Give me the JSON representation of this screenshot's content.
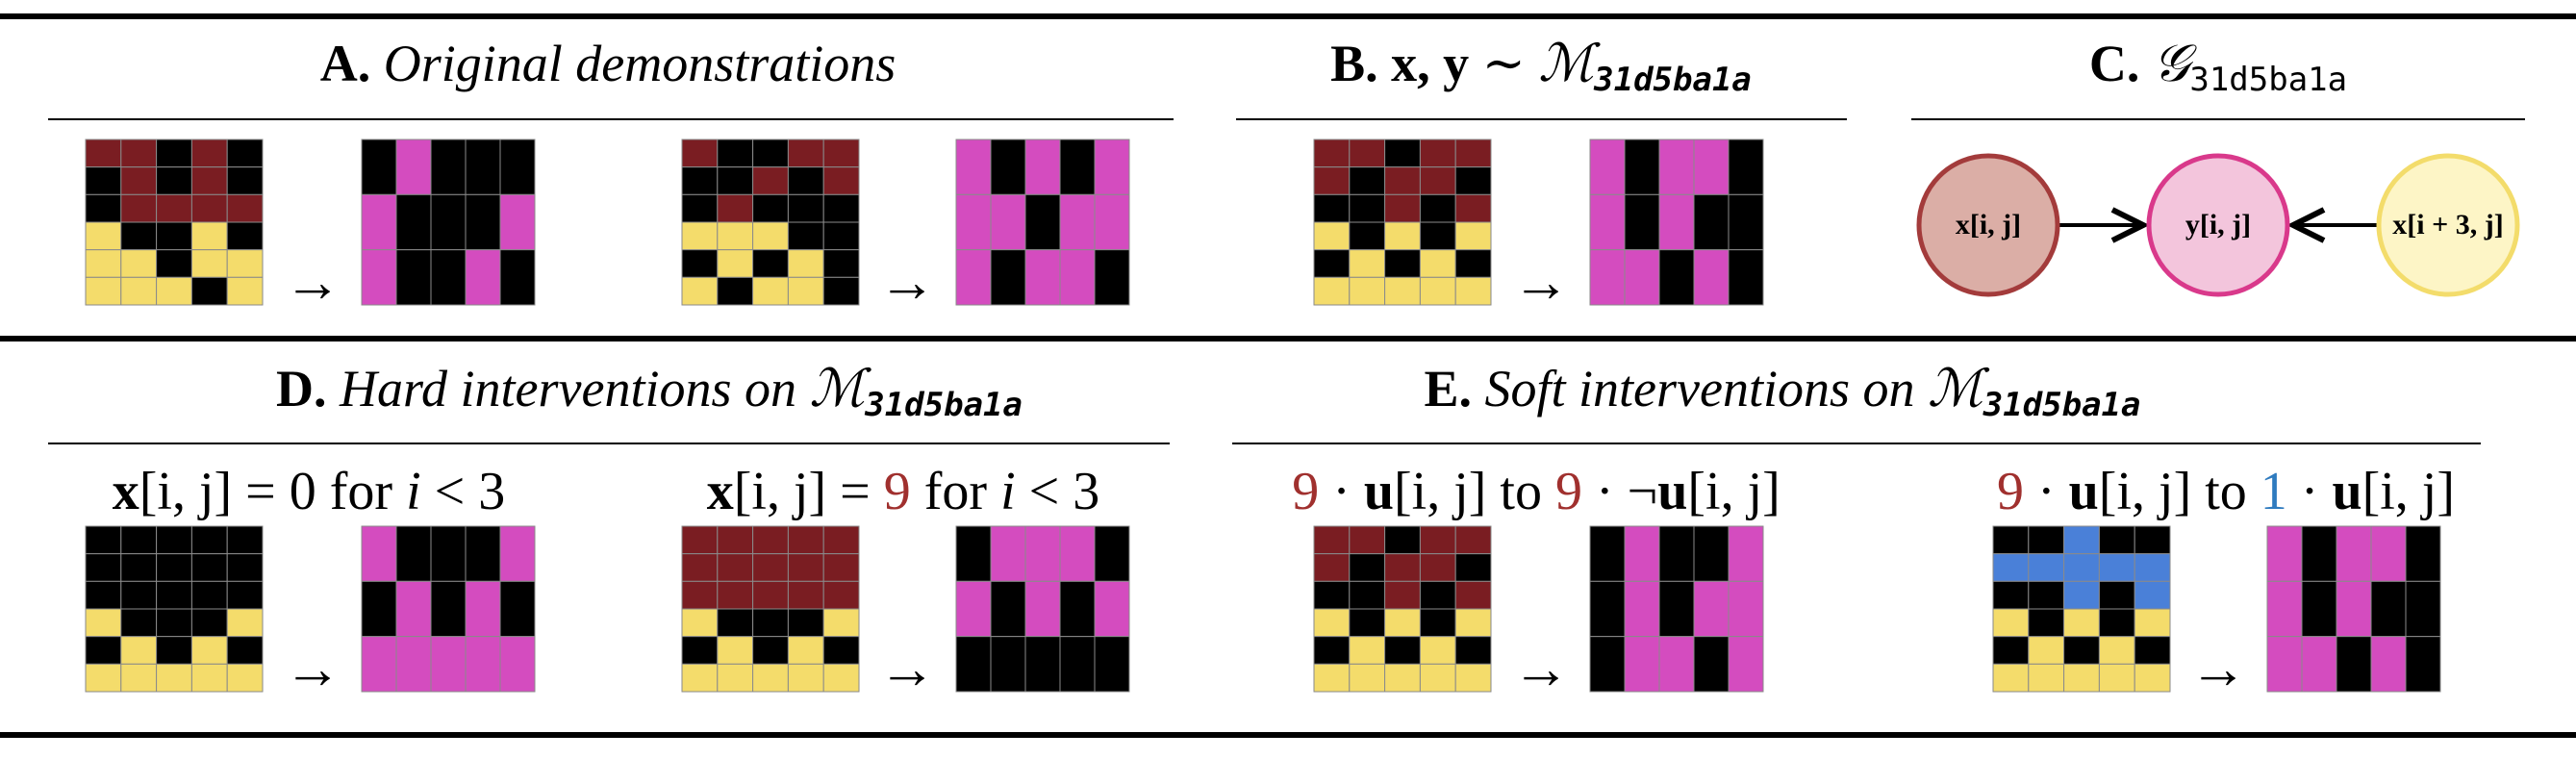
{
  "palette": {
    "0": "#000000",
    "1": "#4a80d8",
    "4": "#f4dc6b",
    "6": "#d44cbf",
    "9": "#7a1d22"
  },
  "arrow": "→",
  "panels": [
    {
      "title": [
        "A.",
        "Original demonstrations"
      ],
      "examples": [
        {
          "input": [
            [
              9,
              9,
              0,
              9,
              0
            ],
            [
              0,
              9,
              0,
              9,
              0
            ],
            [
              0,
              9,
              9,
              9,
              9
            ],
            [
              4,
              0,
              0,
              4,
              0
            ],
            [
              4,
              4,
              0,
              4,
              4
            ],
            [
              4,
              4,
              4,
              0,
              4
            ]
          ],
          "output": [
            [
              0,
              6,
              0,
              0,
              0
            ],
            [
              6,
              0,
              0,
              0,
              6
            ],
            [
              6,
              0,
              0,
              6,
              0
            ]
          ]
        },
        {
          "input": [
            [
              9,
              0,
              0,
              9,
              9
            ],
            [
              0,
              0,
              9,
              0,
              9
            ],
            [
              0,
              9,
              0,
              0,
              0
            ],
            [
              4,
              4,
              4,
              0,
              0
            ],
            [
              0,
              4,
              0,
              4,
              0
            ],
            [
              4,
              0,
              4,
              4,
              0
            ]
          ],
          "output": [
            [
              6,
              0,
              6,
              0,
              6
            ],
            [
              6,
              6,
              0,
              6,
              6
            ],
            [
              6,
              0,
              6,
              6,
              0
            ]
          ]
        }
      ]
    },
    {
      "title": [
        "B.",
        "x, y",
        " ∼ ",
        "ℳ",
        "31d5ba1a"
      ],
      "examples": [
        {
          "input": [
            [
              9,
              9,
              0,
              9,
              9
            ],
            [
              9,
              0,
              9,
              9,
              0
            ],
            [
              0,
              0,
              9,
              0,
              9
            ],
            [
              4,
              0,
              4,
              0,
              4
            ],
            [
              0,
              4,
              0,
              4,
              0
            ],
            [
              4,
              4,
              4,
              4,
              4
            ]
          ],
          "output": [
            [
              6,
              0,
              6,
              6,
              0
            ],
            [
              6,
              0,
              6,
              0,
              0
            ],
            [
              6,
              6,
              0,
              6,
              0
            ]
          ]
        }
      ]
    },
    {
      "title": [
        "C.",
        "𝒢",
        "31d5ba1a"
      ],
      "nodes": [
        "x[i, j]",
        "y[i, j]",
        "x[i + 3, j]"
      ]
    },
    {
      "title": [
        "D.",
        "Hard interventions on ",
        "ℳ",
        "31d5ba1a"
      ],
      "examples": [
        {
          "caption": [
            "x",
            "[i, j] = ",
            "0",
            " for ",
            "i",
            " < 3"
          ],
          "input": [
            [
              0,
              0,
              0,
              0,
              0
            ],
            [
              0,
              0,
              0,
              0,
              0
            ],
            [
              0,
              0,
              0,
              0,
              0
            ],
            [
              4,
              0,
              0,
              0,
              4
            ],
            [
              0,
              4,
              0,
              4,
              0
            ],
            [
              4,
              4,
              4,
              4,
              4
            ]
          ],
          "output": [
            [
              6,
              0,
              0,
              0,
              6
            ],
            [
              0,
              6,
              0,
              6,
              0
            ],
            [
              6,
              6,
              6,
              6,
              6
            ]
          ]
        },
        {
          "caption": [
            "x",
            "[i, j] = ",
            "9",
            " for ",
            "i",
            " < 3"
          ],
          "input": [
            [
              9,
              9,
              9,
              9,
              9
            ],
            [
              9,
              9,
              9,
              9,
              9
            ],
            [
              9,
              9,
              9,
              9,
              9
            ],
            [
              4,
              0,
              0,
              0,
              4
            ],
            [
              0,
              4,
              0,
              4,
              0
            ],
            [
              4,
              4,
              4,
              4,
              4
            ]
          ],
          "output": [
            [
              0,
              6,
              6,
              6,
              0
            ],
            [
              6,
              0,
              6,
              0,
              6
            ],
            [
              0,
              0,
              0,
              0,
              0
            ]
          ]
        }
      ]
    },
    {
      "title": [
        "E.",
        "Soft interventions on ",
        "ℳ",
        "31d5ba1a"
      ],
      "examples": [
        {
          "caption": [
            "9",
            " · ",
            "u",
            "[i, j] to ",
            "9",
            " · ¬",
            "u",
            "[i, j]"
          ],
          "input": [
            [
              9,
              9,
              0,
              9,
              9
            ],
            [
              9,
              0,
              9,
              9,
              0
            ],
            [
              0,
              0,
              9,
              0,
              9
            ],
            [
              4,
              0,
              4,
              0,
              4
            ],
            [
              0,
              4,
              0,
              4,
              0
            ],
            [
              4,
              4,
              4,
              4,
              4
            ]
          ],
          "output": [
            [
              0,
              6,
              0,
              0,
              6
            ],
            [
              0,
              6,
              0,
              6,
              6
            ],
            [
              0,
              6,
              6,
              0,
              6
            ]
          ]
        },
        {
          "caption": [
            "9",
            " · ",
            "u",
            "[i, j] to ",
            "1",
            " · ",
            "u",
            "[i, j]"
          ],
          "input": [
            [
              0,
              0,
              1,
              0,
              0
            ],
            [
              1,
              1,
              1,
              1,
              1
            ],
            [
              0,
              0,
              1,
              0,
              1
            ],
            [
              4,
              0,
              4,
              0,
              4
            ],
            [
              0,
              4,
              0,
              4,
              0
            ],
            [
              4,
              4,
              4,
              4,
              4
            ]
          ],
          "output": [
            [
              6,
              0,
              6,
              6,
              0
            ],
            [
              6,
              0,
              6,
              0,
              0
            ],
            [
              6,
              6,
              0,
              6,
              0
            ]
          ]
        }
      ]
    }
  ]
}
